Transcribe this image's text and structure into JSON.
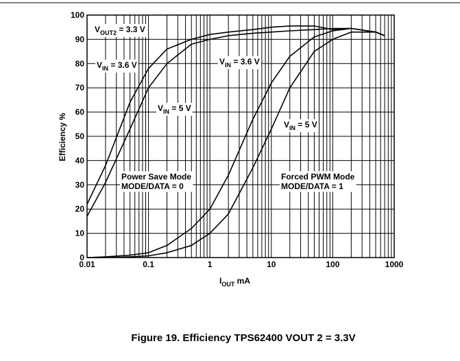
{
  "chart_data": {
    "type": "line",
    "xscale": "log",
    "x": [
      0.01,
      0.02,
      0.05,
      0.1,
      0.2,
      0.5,
      1,
      2,
      5,
      10,
      20,
      50,
      100,
      200,
      500,
      700
    ],
    "series": [
      {
        "color": "#000000",
        "values": [
          22,
          38,
          64,
          78,
          86,
          90,
          92,
          93,
          94,
          95,
          95.5,
          95.5,
          94,
          94.5,
          93,
          91.5
        ]
      },
      {
        "color": "#000000",
        "values": [
          17,
          31,
          53,
          70,
          80,
          88,
          90,
          91.5,
          92.5,
          93,
          93.5,
          94,
          94.5,
          94.5,
          93,
          91.5
        ]
      },
      {
        "color": "#000000",
        "values": [
          0,
          0.3,
          1,
          2,
          5,
          12,
          20,
          34,
          57,
          72,
          83,
          91,
          93.5,
          94.5,
          93,
          91.5
        ]
      },
      {
        "color": "#000000",
        "values": [
          0,
          0,
          0.3,
          0.7,
          2,
          5,
          10,
          18,
          37,
          53,
          70,
          85,
          90,
          93,
          93,
          91.5
        ]
      }
    ],
    "xlim": [
      0.01,
      1000
    ],
    "ylim": [
      0,
      100
    ],
    "xticks": [
      0.01,
      0.1,
      1,
      10,
      100,
      1000
    ],
    "yticks": [
      0,
      10,
      20,
      30,
      40,
      50,
      60,
      70,
      80,
      90,
      100
    ],
    "grid": true,
    "ylabel": "Efficiency %",
    "xlabel": {
      "main": "I",
      "sub": "OUT",
      "rest": " mA"
    },
    "annotations": [
      {
        "main": "V",
        "sub": "OUT2",
        "rest": " = 3.3 V"
      },
      {
        "main": "V",
        "sub": "IN",
        "rest": " = 3.6 V"
      },
      {
        "main": "V",
        "sub": "IN",
        "rest": " = 3.6 V"
      },
      {
        "main": "V",
        "sub": "IN",
        "rest": " = 5 V"
      },
      {
        "main": "V",
        "sub": "IN",
        "rest": " = 5 V"
      },
      {
        "lines": [
          "Power Save Mode",
          "MODE/DATA = 0"
        ]
      },
      {
        "lines": [
          "Forced PWM Mode",
          "MODE/DATA = 1"
        ]
      }
    ],
    "caption": "Figure 19. Efficiency TPS62400 VOUT 2 = 3.3V"
  }
}
